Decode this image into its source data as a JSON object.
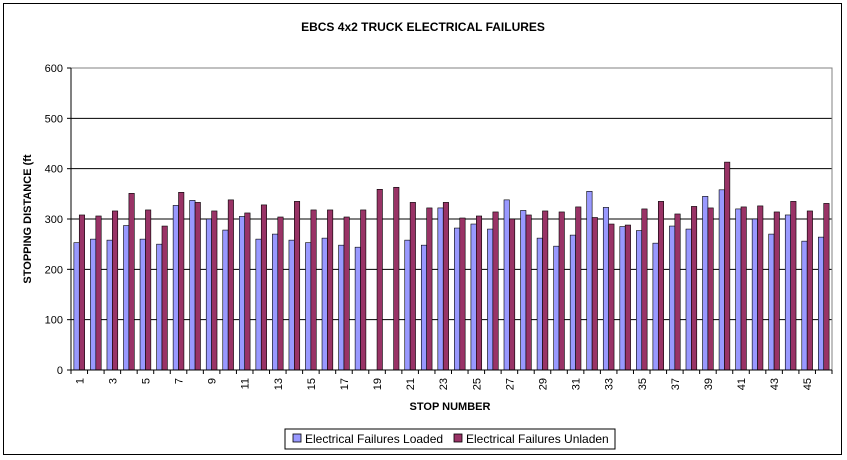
{
  "chart_data": {
    "type": "bar",
    "title": "EBCS 4x2 TRUCK ELECTRICAL FAILURES",
    "xlabel": "STOP NUMBER",
    "ylabel": "STOPPING DISTANCE (ft",
    "ylim": [
      0,
      600
    ],
    "yticks": [
      "0",
      "100",
      "200",
      "300",
      "400",
      "500",
      "600"
    ],
    "grid": true,
    "legend_position": "bottom",
    "categories": [
      "1",
      "2",
      "3",
      "4",
      "5",
      "6",
      "7",
      "8",
      "9",
      "10",
      "11",
      "12",
      "13",
      "14",
      "15",
      "16",
      "17",
      "18",
      "19",
      "20",
      "21",
      "22",
      "23",
      "24",
      "25",
      "26",
      "27",
      "28",
      "29",
      "30",
      "31",
      "32",
      "33",
      "34",
      "35",
      "36",
      "37",
      "38",
      "39",
      "40",
      "41",
      "42",
      "43",
      "44",
      "45",
      "46"
    ],
    "xtick_labels": [
      "1",
      "",
      "3",
      "",
      "5",
      "",
      "7",
      "",
      "9",
      "",
      "11",
      "",
      "13",
      "",
      "15",
      "",
      "17",
      "",
      "19",
      "",
      "21",
      "",
      "23",
      "",
      "25",
      "",
      "27",
      "",
      "29",
      "",
      "31",
      "",
      "33",
      "",
      "35",
      "",
      "37",
      "",
      "39",
      "",
      "41",
      "",
      "43",
      "",
      "45",
      ""
    ],
    "series": [
      {
        "name": "Electrical Failures Loaded",
        "color": "#9999ff",
        "values": [
          253,
          260,
          258,
          287,
          260,
          250,
          327,
          337,
          300,
          278,
          305,
          260,
          270,
          258,
          253,
          262,
          248,
          244,
          null,
          null,
          258,
          248,
          322,
          282,
          290,
          280,
          338,
          317,
          262,
          246,
          268,
          355,
          323,
          285,
          277,
          252,
          286,
          280,
          345,
          358,
          320,
          300,
          270,
          308,
          256,
          264
        ]
      },
      {
        "name": "Electrical Failures Unladen",
        "color": "#993366",
        "values": [
          308,
          306,
          316,
          351,
          318,
          286,
          353,
          333,
          316,
          338,
          312,
          328,
          304,
          335,
          318,
          318,
          304,
          318,
          359,
          363,
          333,
          322,
          333,
          302,
          306,
          314,
          300,
          308,
          316,
          314,
          324,
          303,
          290,
          288,
          320,
          335,
          310,
          325,
          322,
          413,
          324,
          326,
          314,
          335,
          316,
          331
        ]
      }
    ]
  }
}
